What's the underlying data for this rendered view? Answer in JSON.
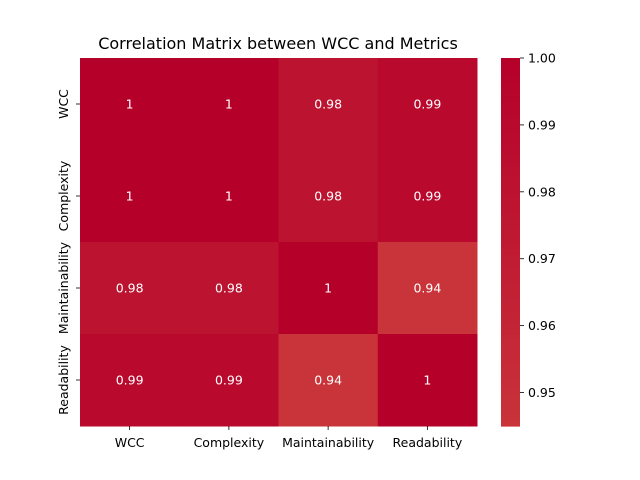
{
  "chart_data": {
    "type": "heatmap",
    "title": "Correlation Matrix between WCC and Metrics",
    "x_categories": [
      "WCC",
      "Complexity",
      "Maintainability",
      "Readability"
    ],
    "y_categories": [
      "WCC",
      "Complexity",
      "Maintainability",
      "Readability"
    ],
    "values": [
      [
        1.0,
        1.0,
        0.98,
        0.99
      ],
      [
        1.0,
        1.0,
        0.98,
        0.99
      ],
      [
        0.98,
        0.98,
        1.0,
        0.94
      ],
      [
        0.99,
        0.99,
        0.94,
        1.0
      ]
    ],
    "annotations": [
      [
        "1",
        "1",
        "0.98",
        "0.99"
      ],
      [
        "1",
        "1",
        "0.98",
        "0.99"
      ],
      [
        "0.98",
        "0.98",
        "1",
        "0.94"
      ],
      [
        "0.99",
        "0.99",
        "0.94",
        "1"
      ]
    ],
    "colorbar": {
      "range": [
        0.945,
        1.0
      ],
      "ticks": [
        0.95,
        0.96,
        0.97,
        0.98,
        0.99,
        1.0
      ],
      "tick_labels": [
        "0.95",
        "0.96",
        "0.97",
        "0.98",
        "0.99",
        "1.00"
      ]
    },
    "colors": {
      "low": "#c9333a",
      "high": "#b5002a"
    }
  }
}
